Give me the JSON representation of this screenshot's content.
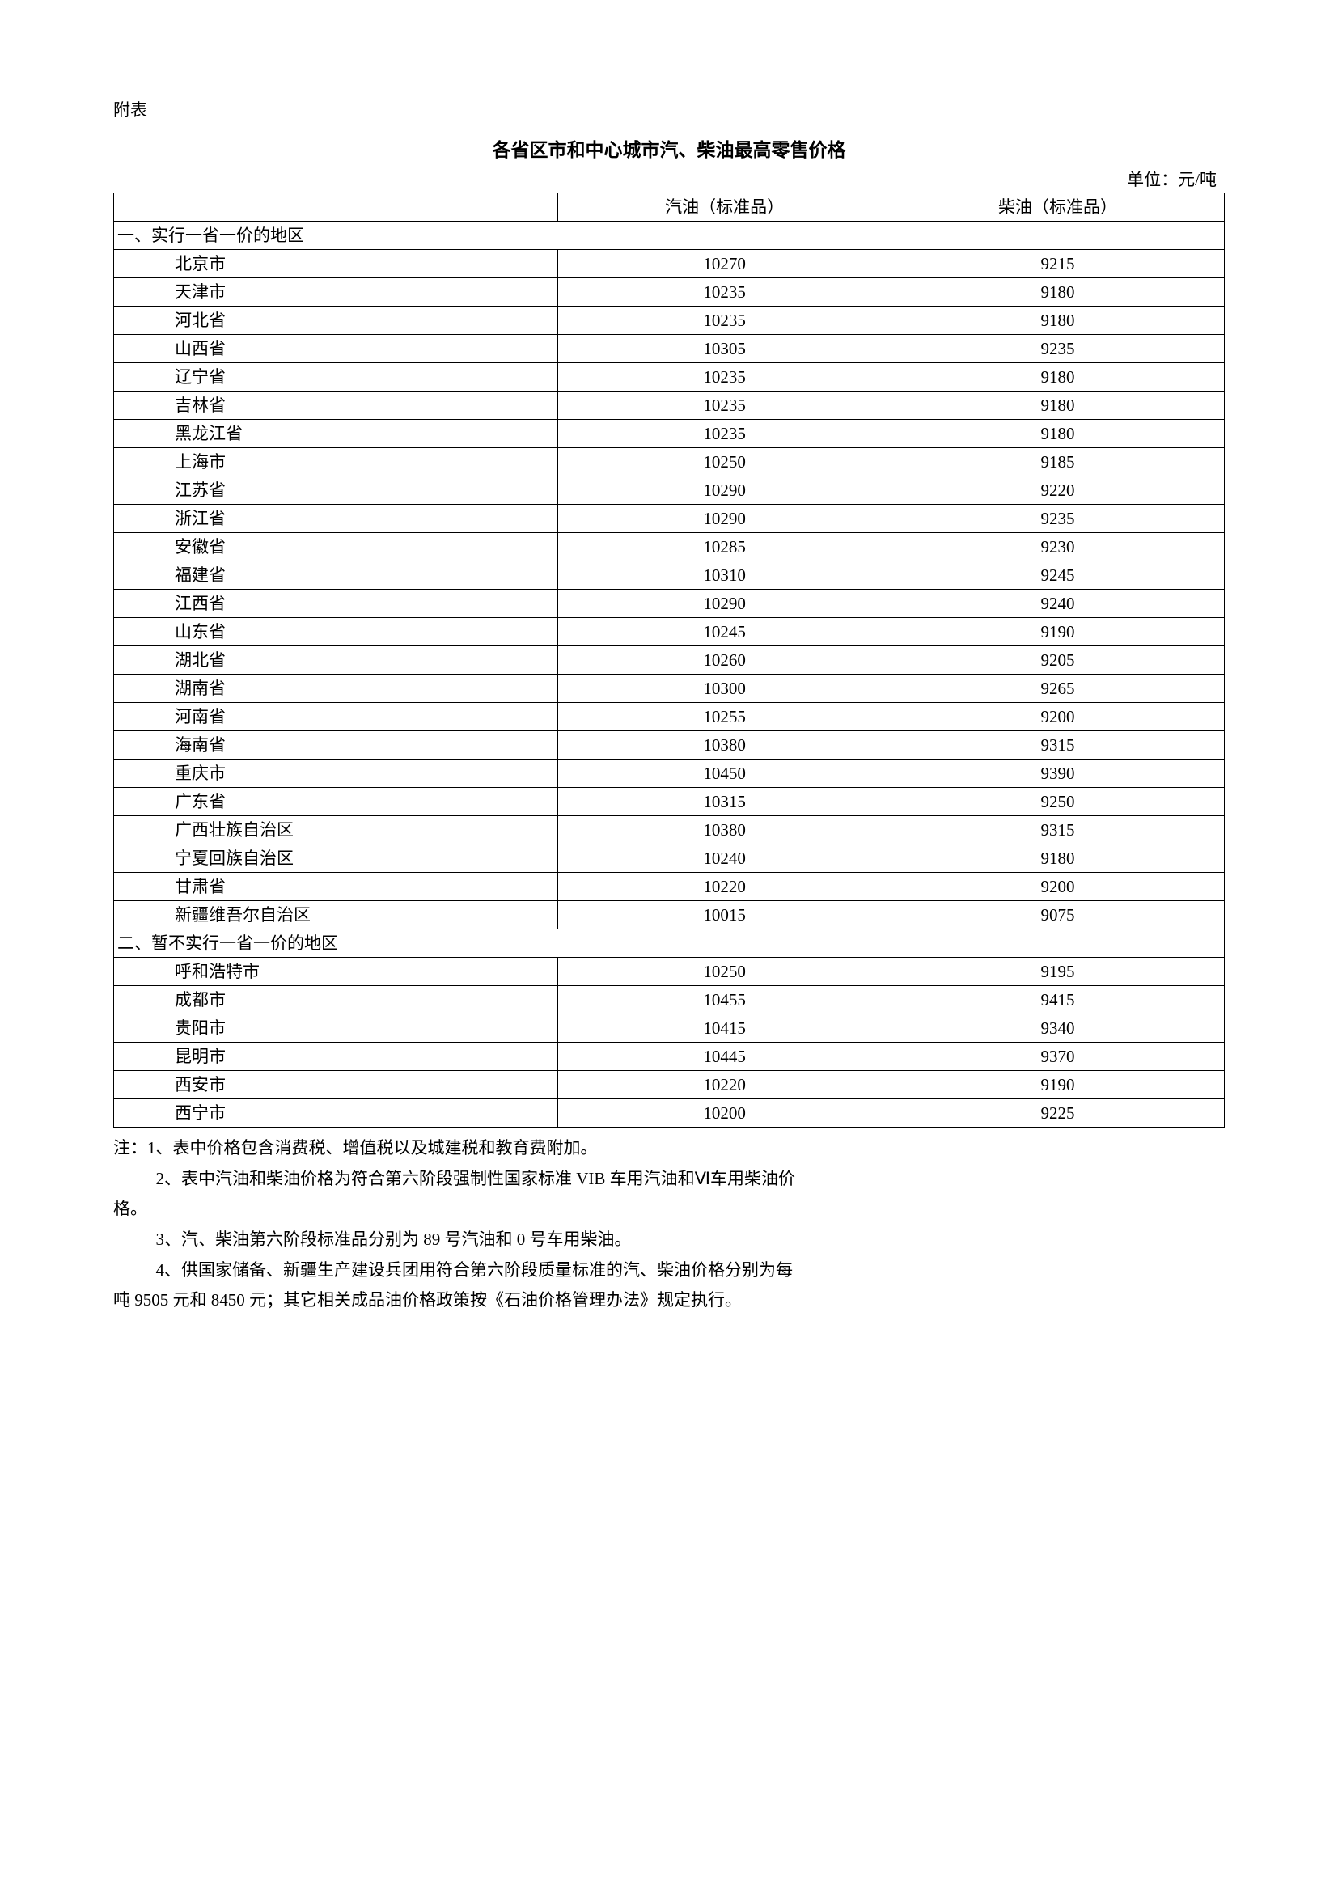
{
  "attachment_label": "附表",
  "title": "各省区市和中心城市汽、柴油最高零售价格",
  "unit": "单位：元/吨",
  "table": {
    "columns": [
      "",
      "汽油（标准品）",
      "柴油（标准品）"
    ],
    "section1_header": "一、实行一省一价的地区",
    "section1_rows": [
      {
        "region": "北京市",
        "gas": "10270",
        "diesel": "9215"
      },
      {
        "region": "天津市",
        "gas": "10235",
        "diesel": "9180"
      },
      {
        "region": "河北省",
        "gas": "10235",
        "diesel": "9180"
      },
      {
        "region": "山西省",
        "gas": "10305",
        "diesel": "9235"
      },
      {
        "region": "辽宁省",
        "gas": "10235",
        "diesel": "9180"
      },
      {
        "region": "吉林省",
        "gas": "10235",
        "diesel": "9180"
      },
      {
        "region": "黑龙江省",
        "gas": "10235",
        "diesel": "9180"
      },
      {
        "region": "上海市",
        "gas": "10250",
        "diesel": "9185"
      },
      {
        "region": "江苏省",
        "gas": "10290",
        "diesel": "9220"
      },
      {
        "region": "浙江省",
        "gas": "10290",
        "diesel": "9235"
      },
      {
        "region": "安徽省",
        "gas": "10285",
        "diesel": "9230"
      },
      {
        "region": "福建省",
        "gas": "10310",
        "diesel": "9245"
      },
      {
        "region": "江西省",
        "gas": "10290",
        "diesel": "9240"
      },
      {
        "region": "山东省",
        "gas": "10245",
        "diesel": "9190"
      },
      {
        "region": "湖北省",
        "gas": "10260",
        "diesel": "9205"
      },
      {
        "region": "湖南省",
        "gas": "10300",
        "diesel": "9265"
      },
      {
        "region": "河南省",
        "gas": "10255",
        "diesel": "9200"
      },
      {
        "region": "海南省",
        "gas": "10380",
        "diesel": "9315"
      },
      {
        "region": "重庆市",
        "gas": "10450",
        "diesel": "9390"
      },
      {
        "region": "广东省",
        "gas": "10315",
        "diesel": "9250"
      },
      {
        "region": "广西壮族自治区",
        "gas": "10380",
        "diesel": "9315"
      },
      {
        "region": "宁夏回族自治区",
        "gas": "10240",
        "diesel": "9180"
      },
      {
        "region": "甘肃省",
        "gas": "10220",
        "diesel": "9200"
      },
      {
        "region": "新疆维吾尔自治区",
        "gas": "10015",
        "diesel": "9075"
      }
    ],
    "section2_header": "二、暂不实行一省一价的地区",
    "section2_rows": [
      {
        "region": "呼和浩特市",
        "gas": "10250",
        "diesel": "9195"
      },
      {
        "region": "成都市",
        "gas": "10455",
        "diesel": "9415"
      },
      {
        "region": "贵阳市",
        "gas": "10415",
        "diesel": "9340"
      },
      {
        "region": "昆明市",
        "gas": "10445",
        "diesel": "9370"
      },
      {
        "region": "西安市",
        "gas": "10220",
        "diesel": "9190"
      },
      {
        "region": "西宁市",
        "gas": "10200",
        "diesel": "9225"
      }
    ]
  },
  "notes": {
    "note1": "注：1、表中价格包含消费税、增值税以及城建税和教育费附加。",
    "note2a": "2、表中汽油和柴油价格为符合第六阶段强制性国家标准 VIB 车用汽油和Ⅵ车用柴油价",
    "note2b": "格。",
    "note3": "3、汽、柴油第六阶段标准品分别为 89 号汽油和 0 号车用柴油。",
    "note4a": "4、供国家储备、新疆生产建设兵团用符合第六阶段质量标准的汽、柴油价格分别为每",
    "note4b": "吨 9505 元和 8450 元；其它相关成品油价格政策按《石油价格管理办法》规定执行。"
  }
}
